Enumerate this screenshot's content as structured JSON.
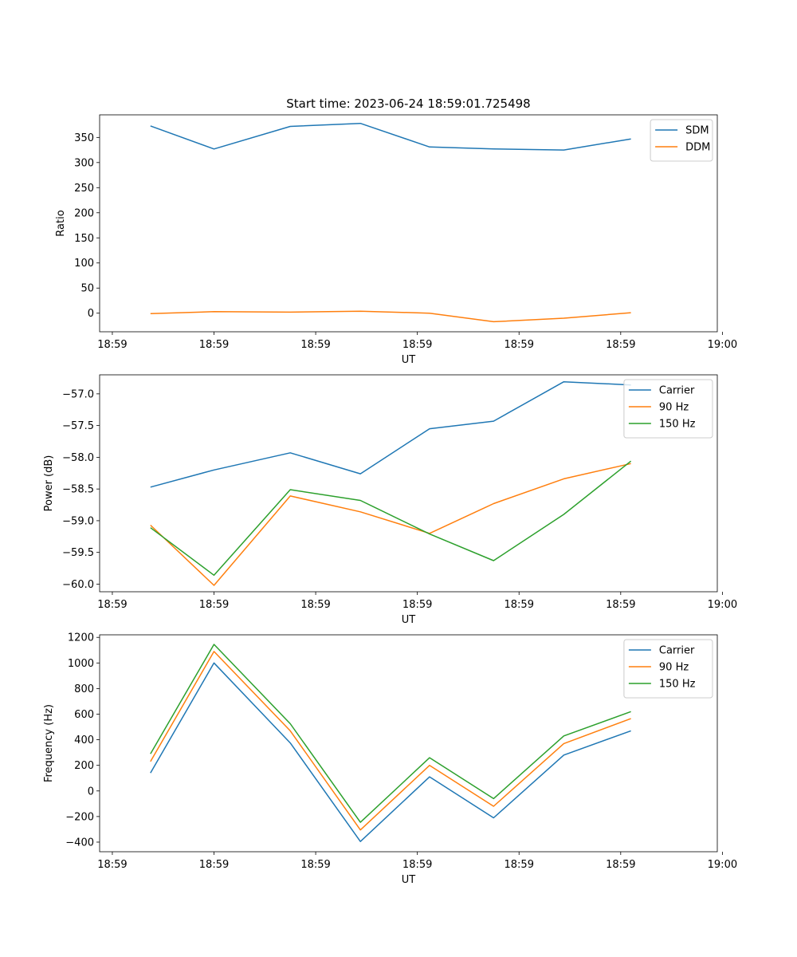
{
  "figure": {
    "title": "Start time: 2023-06-24 18:59:01.725498"
  },
  "chart_data": [
    {
      "type": "line",
      "xlabel": "UT",
      "ylabel": "Ratio",
      "x_tick_labels": [
        "18:59",
        "18:59",
        "18:59",
        "18:59",
        "18:59",
        "18:59",
        "19:00"
      ],
      "xlim": [
        -0.125,
        5.95
      ],
      "x": [
        0.375,
        1.0,
        1.75,
        2.44,
        3.12,
        3.75,
        4.44,
        5.1
      ],
      "ylim": [
        -37,
        395
      ],
      "yticks": [
        0,
        50,
        100,
        150,
        200,
        250,
        300,
        350
      ],
      "legend_position": "top-right",
      "series": [
        {
          "name": "SDM",
          "color": "#1f77b4",
          "values": [
            373,
            327,
            372,
            378,
            331,
            327,
            325,
            347
          ]
        },
        {
          "name": "DDM",
          "color": "#ff7f0e",
          "values": [
            -1,
            3,
            2,
            4,
            0,
            -17,
            -10,
            1
          ]
        }
      ]
    },
    {
      "type": "line",
      "xlabel": "UT",
      "ylabel": "Power (dB)",
      "x_tick_labels": [
        "18:59",
        "18:59",
        "18:59",
        "18:59",
        "18:59",
        "18:59",
        "19:00"
      ],
      "xlim": [
        -0.125,
        5.95
      ],
      "x": [
        0.375,
        1.0,
        1.75,
        2.44,
        3.12,
        3.75,
        4.44,
        5.1
      ],
      "ylim": [
        -60.12,
        -56.7
      ],
      "yticks": [
        -60.0,
        -59.5,
        -59.0,
        -58.5,
        -58.0,
        -57.5,
        -57.0
      ],
      "legend_position": "top-right",
      "series": [
        {
          "name": "Carrier",
          "color": "#1f77b4",
          "values": [
            -58.47,
            -58.2,
            -57.93,
            -58.26,
            -57.55,
            -57.43,
            -56.81,
            -56.86
          ]
        },
        {
          "name": "90 Hz",
          "color": "#ff7f0e",
          "values": [
            -59.07,
            -60.02,
            -58.61,
            -58.86,
            -59.2,
            -58.73,
            -58.34,
            -58.1
          ]
        },
        {
          "name": "150 Hz",
          "color": "#2ca02c",
          "values": [
            -59.11,
            -59.86,
            -58.51,
            -58.68,
            -59.21,
            -59.63,
            -58.9,
            -58.06
          ]
        }
      ]
    },
    {
      "type": "line",
      "xlabel": "UT",
      "ylabel": "Frequency (Hz)",
      "x_tick_labels": [
        "18:59",
        "18:59",
        "18:59",
        "18:59",
        "18:59",
        "18:59",
        "19:00"
      ],
      "xlim": [
        -0.125,
        5.95
      ],
      "x": [
        0.375,
        1.0,
        1.75,
        2.44,
        3.12,
        3.75,
        4.44,
        5.1
      ],
      "ylim": [
        -475,
        1220
      ],
      "yticks": [
        -400,
        -200,
        0,
        200,
        400,
        600,
        800,
        1000,
        1200
      ],
      "legend_position": "top-right",
      "series": [
        {
          "name": "Carrier",
          "color": "#1f77b4",
          "values": [
            140,
            1000,
            375,
            -395,
            110,
            -210,
            280,
            470
          ]
        },
        {
          "name": "90 Hz",
          "color": "#ff7f0e",
          "values": [
            230,
            1090,
            470,
            -305,
            200,
            -120,
            370,
            565
          ]
        },
        {
          "name": "150 Hz",
          "color": "#2ca02c",
          "values": [
            290,
            1145,
            525,
            -245,
            260,
            -60,
            430,
            620
          ]
        }
      ]
    }
  ]
}
